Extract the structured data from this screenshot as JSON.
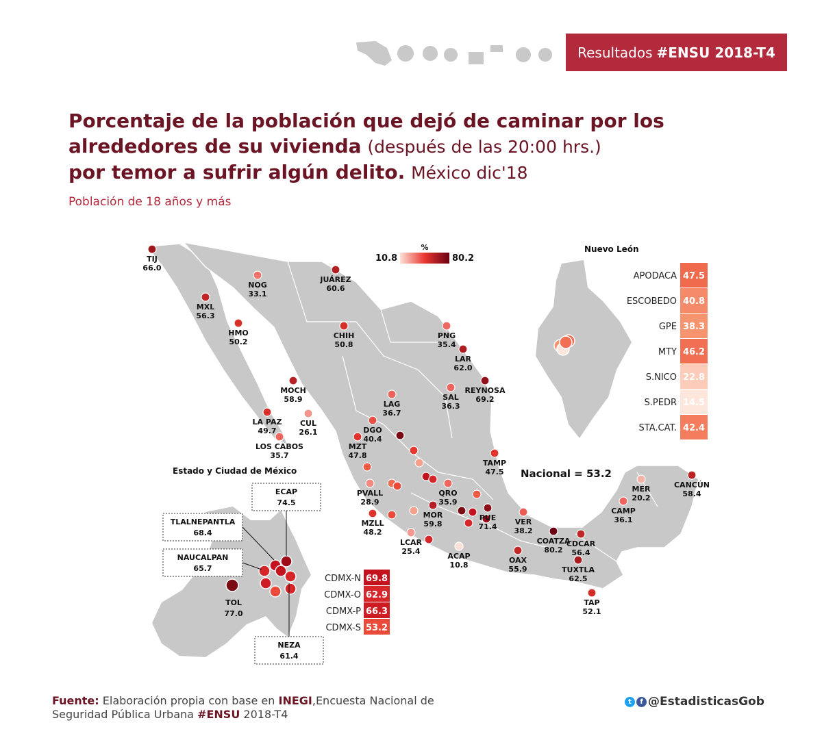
{
  "header": {
    "badge_prefix": "Resultados",
    "badge_tag": "#ENSU 2018-T4"
  },
  "title": {
    "line1": "Porcentaje de la población que dejó de caminar por los",
    "line2_bold": "alrededores de su vivienda",
    "line2_normal": "(después de las 20:00 hrs.)",
    "line3_bold": "por temor a sufrir algún delito.",
    "line3_normal": "México dic'18"
  },
  "subtitle": "Población de 18 años y más",
  "legend": {
    "title": "%",
    "min_label": "10.8",
    "max_label": "80.2",
    "min": 10.8,
    "max": 80.2,
    "color_low": "#fde0d8",
    "color_high": "#6b0012"
  },
  "nacional": "Nacional = 53.2",
  "map_colors": {
    "land": "#c8c8c8",
    "border": "#ffffff",
    "badge": "#b22a3b",
    "title": "#6b1424"
  },
  "cities": [
    {
      "name": "TIJ",
      "value": "66.0",
      "v": 66.0
    },
    {
      "name": "MXL",
      "value": "56.3",
      "v": 56.3
    },
    {
      "name": "HMO",
      "value": "50.2",
      "v": 50.2
    },
    {
      "name": "NOG",
      "value": "33.1",
      "v": 33.1
    },
    {
      "name": "JUÁREZ",
      "value": "60.6",
      "v": 60.6
    },
    {
      "name": "CHIH",
      "value": "50.8",
      "v": 50.8
    },
    {
      "name": "PNG",
      "value": "35.4",
      "v": 35.4
    },
    {
      "name": "LAR",
      "value": "62.0",
      "v": 62.0
    },
    {
      "name": "REYNOSA",
      "value": "69.2",
      "v": 69.2
    },
    {
      "name": "MOCH",
      "value": "58.9",
      "v": 58.9
    },
    {
      "name": "LAG",
      "value": "36.7",
      "v": 36.7
    },
    {
      "name": "SAL",
      "value": "36.3",
      "v": 36.3
    },
    {
      "name": "LA PAZ",
      "value": "49.7",
      "v": 49.7
    },
    {
      "name": "CUL",
      "value": "26.1",
      "v": 26.1
    },
    {
      "name": "DGO",
      "value": "40.4",
      "v": 40.4
    },
    {
      "name": "LOS CABOS",
      "value": "35.7",
      "v": 35.7
    },
    {
      "name": "MZT",
      "value": "47.8",
      "v": 47.8
    },
    {
      "name": "TAMP",
      "value": "47.5",
      "v": 47.5
    },
    {
      "name": "MER",
      "value": "20.2",
      "v": 20.2
    },
    {
      "name": "CANCÚN",
      "value": "58.4",
      "v": 58.4
    },
    {
      "name": "PVALL",
      "value": "28.9",
      "v": 28.9
    },
    {
      "name": "QRO",
      "value": "35.9",
      "v": 35.9
    },
    {
      "name": "MZLL",
      "value": "48.2",
      "v": 48.2
    },
    {
      "name": "MOR",
      "value": "59.8",
      "v": 59.8
    },
    {
      "name": "PUE",
      "value": "71.4",
      "v": 71.4
    },
    {
      "name": "VER",
      "value": "38.2",
      "v": 38.2
    },
    {
      "name": "CAMP",
      "value": "36.1",
      "v": 36.1
    },
    {
      "name": "LCAR",
      "value": "25.4",
      "v": 25.4
    },
    {
      "name": "COATZA",
      "value": "80.2",
      "v": 80.2
    },
    {
      "name": "CDCAR",
      "value": "56.4",
      "v": 56.4
    },
    {
      "name": "ACAP",
      "value": "10.8",
      "v": 10.8
    },
    {
      "name": "OAX",
      "value": "55.9",
      "v": 55.9
    },
    {
      "name": "TUXTLA",
      "value": "62.5",
      "v": 62.5
    },
    {
      "name": "TAP",
      "value": "52.1",
      "v": 52.1
    }
  ],
  "nuevo_leon": {
    "title": "Nuevo León",
    "rows": [
      {
        "name": "APODACA",
        "value": "47.5",
        "color": "#f06a4e"
      },
      {
        "name": "ESCOBEDO",
        "value": "40.8",
        "color": "#f58a6a"
      },
      {
        "name": "GPE",
        "value": "38.3",
        "color": "#f6946f"
      },
      {
        "name": "MTY",
        "value": "46.2",
        "color": "#f16f52"
      },
      {
        "name": "S.NICO",
        "value": "22.8",
        "color": "#fccbb9"
      },
      {
        "name": "S.PEDR",
        "value": "14.5",
        "color": "#fde6dc"
      },
      {
        "name": "STA.CAT.",
        "value": "42.4",
        "color": "#f37d5d"
      }
    ]
  },
  "edomex": {
    "title": "Estado y Ciudad de México",
    "callouts": [
      {
        "name": "ECAP",
        "value": "74.5"
      },
      {
        "name": "TLALNEPANTLA",
        "value": "68.4"
      },
      {
        "name": "NAUCALPAN",
        "value": "65.7"
      },
      {
        "name": "TOL",
        "value": "77.0"
      },
      {
        "name": "NEZA",
        "value": "61.4"
      }
    ],
    "cdmx": [
      {
        "name": "CDMX-N",
        "value": "69.8",
        "color": "#c4121e"
      },
      {
        "name": "CDMX-O",
        "value": "62.9",
        "color": "#d6262a"
      },
      {
        "name": "CDMX-P",
        "value": "66.3",
        "color": "#ce1c24"
      },
      {
        "name": "CDMX-S",
        "value": "53.2",
        "color": "#ea4a3a"
      }
    ]
  },
  "footer": {
    "label": "Fuente:",
    "text1": "Elaboración propia con base en",
    "inegi": "INEGI",
    "text2": ",Encuesta Nacional de Seguridad Pública Urbana",
    "ensu": "#ENSU",
    "text3": "2018-T4"
  },
  "social": {
    "handle": "@EstadisticasGob",
    "icons": [
      "twitter-icon",
      "facebook-icon"
    ]
  }
}
